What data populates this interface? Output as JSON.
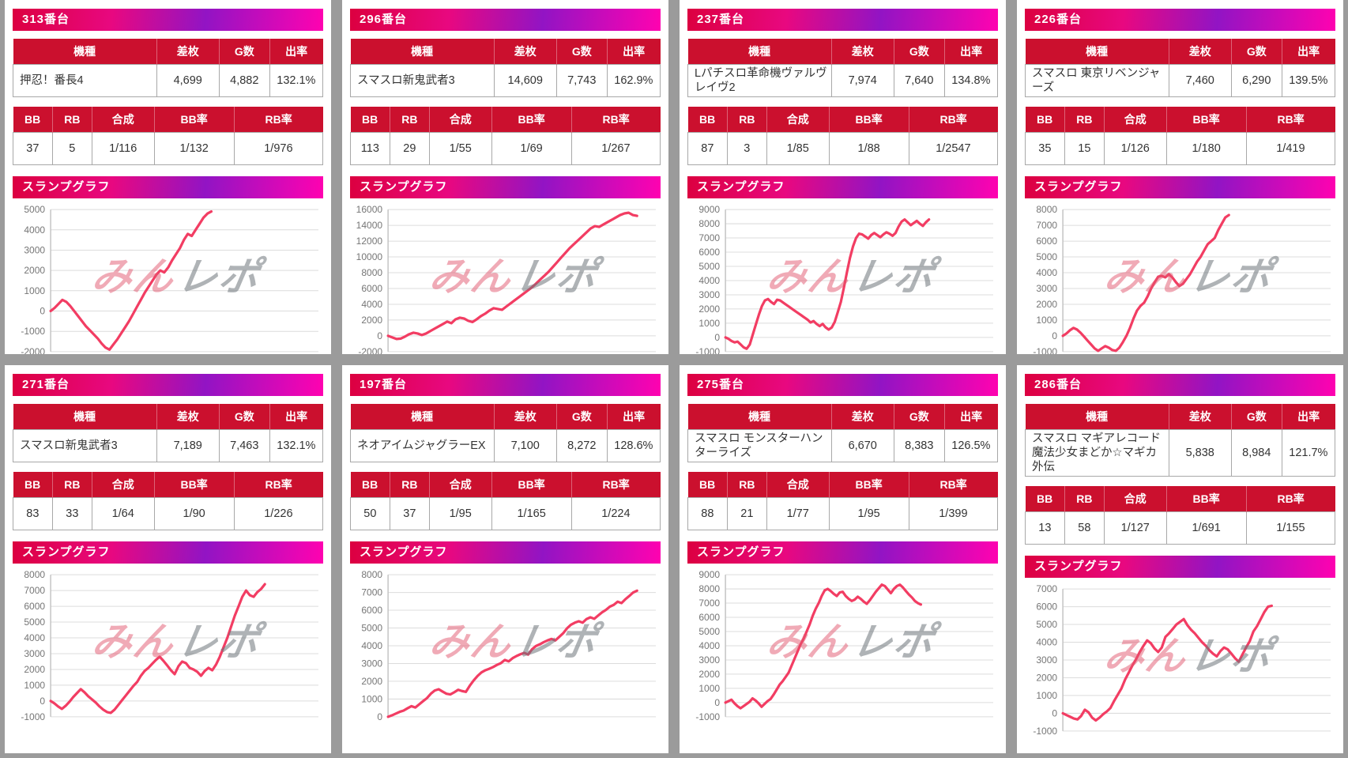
{
  "page": {
    "bg": "#9b9b9b"
  },
  "colors": {
    "header_gradient": [
      "#dc0040",
      "#e80880",
      "#9214c4",
      "#ff02b0"
    ],
    "table_header_red": "#cb102e",
    "line": "#f23d63",
    "watermark_pink": "#e1556e",
    "watermark_gray": "#6e747a",
    "grid_line": "#dcdcdc",
    "tick_text": "#757575"
  },
  "labels": {
    "t1": [
      "機種",
      "差枚",
      "G数",
      "出率"
    ],
    "t2": [
      "BB",
      "RB",
      "合成",
      "BB率",
      "RB率"
    ],
    "graph_title": "スランプグラフ",
    "watermark_pink": "みん",
    "watermark_gray": "レポ"
  },
  "panels": [
    {
      "unit": "313番台",
      "machine": "押忍！番長4",
      "diff": "4,699",
      "games": "4,882",
      "rate": "132.1%",
      "bb": "37",
      "rb": "5",
      "combined": "1/116",
      "bb_rate": "1/132",
      "rb_rate": "1/976"
    },
    {
      "unit": "296番台",
      "machine": "スマスロ新鬼武者3",
      "diff": "14,609",
      "games": "7,743",
      "rate": "162.9%",
      "bb": "113",
      "rb": "29",
      "combined": "1/55",
      "bb_rate": "1/69",
      "rb_rate": "1/267"
    },
    {
      "unit": "237番台",
      "machine": "Lパチスロ革命機ヴァルヴレイヴ2",
      "diff": "7,974",
      "games": "7,640",
      "rate": "134.8%",
      "bb": "87",
      "rb": "3",
      "combined": "1/85",
      "bb_rate": "1/88",
      "rb_rate": "1/2547"
    },
    {
      "unit": "226番台",
      "machine": "スマスロ 東京リベンジャーズ",
      "diff": "7,460",
      "games": "6,290",
      "rate": "139.5%",
      "bb": "35",
      "rb": "15",
      "combined": "1/126",
      "bb_rate": "1/180",
      "rb_rate": "1/419"
    },
    {
      "unit": "271番台",
      "machine": "スマスロ新鬼武者3",
      "diff": "7,189",
      "games": "7,463",
      "rate": "132.1%",
      "bb": "83",
      "rb": "33",
      "combined": "1/64",
      "bb_rate": "1/90",
      "rb_rate": "1/226"
    },
    {
      "unit": "197番台",
      "machine": "ネオアイムジャグラーEX",
      "diff": "7,100",
      "games": "8,272",
      "rate": "128.6%",
      "bb": "50",
      "rb": "37",
      "combined": "1/95",
      "bb_rate": "1/165",
      "rb_rate": "1/224"
    },
    {
      "unit": "275番台",
      "machine": "スマスロ モンスターハンターライズ",
      "diff": "6,670",
      "games": "8,383",
      "rate": "126.5%",
      "bb": "88",
      "rb": "21",
      "combined": "1/77",
      "bb_rate": "1/95",
      "rb_rate": "1/399"
    },
    {
      "unit": "286番台",
      "machine": "スマスロ マギアレコード 魔法少女まどか☆マギカ外伝",
      "diff": "5,838",
      "games": "8,984",
      "rate": "121.7%",
      "bb": "13",
      "rb": "58",
      "combined": "1/127",
      "bb_rate": "1/691",
      "rb_rate": "1/155"
    }
  ],
  "chart_data": [
    {
      "type": "line",
      "title": "313番台 スランプグラフ",
      "xlabel": "",
      "ylabel": "差枚",
      "ylim": [
        -2000,
        5000
      ],
      "ytick_step": 1000,
      "grid": true,
      "legend": "none",
      "x_end_frac": 0.6,
      "values": [
        0,
        150,
        350,
        550,
        450,
        250,
        0,
        -250,
        -500,
        -750,
        -950,
        -1150,
        -1350,
        -1600,
        -1800,
        -1900,
        -1650,
        -1400,
        -1100,
        -800,
        -500,
        -150,
        200,
        550,
        900,
        1200,
        1500,
        1800,
        2000,
        1900,
        2150,
        2500,
        2800,
        3100,
        3500,
        3800,
        3700,
        4000,
        4300,
        4600,
        4800,
        4900
      ]
    },
    {
      "type": "line",
      "title": "296番台 スランプグラフ",
      "xlabel": "",
      "ylabel": "差枚",
      "ylim": [
        -2000,
        16000
      ],
      "ytick_step": 2000,
      "grid": true,
      "legend": "none",
      "x_end_frac": 0.93,
      "values": [
        0,
        -200,
        -400,
        -350,
        -100,
        200,
        400,
        300,
        100,
        300,
        600,
        900,
        1200,
        1500,
        1800,
        1600,
        2100,
        2300,
        2200,
        1900,
        1750,
        2100,
        2500,
        2800,
        3200,
        3500,
        3400,
        3300,
        3700,
        4100,
        4500,
        4900,
        5300,
        5700,
        6100,
        6600,
        7100,
        7600,
        8100,
        8700,
        9300,
        9900,
        10500,
        11100,
        11600,
        12100,
        12600,
        13100,
        13600,
        13900,
        13800,
        14100,
        14400,
        14700,
        15000,
        15300,
        15500,
        15600,
        15300,
        15200
      ]
    },
    {
      "type": "line",
      "title": "237番台 スランプグラフ",
      "xlabel": "",
      "ylabel": "差枚",
      "ylim": [
        -1000,
        9000
      ],
      "ytick_step": 1000,
      "grid": true,
      "legend": "none",
      "x_end_frac": 0.76,
      "values": [
        0,
        -100,
        -250,
        -350,
        -300,
        -500,
        -700,
        -800,
        -500,
        200,
        900,
        1600,
        2200,
        2600,
        2700,
        2500,
        2350,
        2650,
        2600,
        2450,
        2300,
        2150,
        2000,
        1850,
        1700,
        1550,
        1400,
        1250,
        1050,
        1150,
        950,
        800,
        950,
        700,
        550,
        700,
        1100,
        1800,
        2500,
        3500,
        4600,
        5600,
        6400,
        7000,
        7300,
        7250,
        7100,
        6950,
        7200,
        7350,
        7200,
        7050,
        7250,
        7400,
        7300,
        7150,
        7350,
        7800,
        8150,
        8300,
        8100,
        7900,
        8050,
        8200,
        8000,
        7850,
        8100,
        8300
      ]
    },
    {
      "type": "line",
      "title": "226番台 スランプグラフ",
      "xlabel": "",
      "ylabel": "差枚",
      "ylim": [
        -1000,
        8000
      ],
      "ytick_step": 1000,
      "grid": true,
      "legend": "none",
      "x_end_frac": 0.62,
      "values": [
        0,
        150,
        350,
        500,
        400,
        200,
        -50,
        -300,
        -550,
        -800,
        -950,
        -800,
        -650,
        -750,
        -900,
        -950,
        -750,
        -400,
        0,
        500,
        1100,
        1600,
        1900,
        2100,
        2500,
        3000,
        3400,
        3750,
        3800,
        3700,
        3900,
        3700,
        3400,
        3150,
        3300,
        3600,
        3900,
        4300,
        4700,
        5000,
        5400,
        5800,
        6000,
        6200,
        6700,
        7100,
        7500,
        7650
      ]
    },
    {
      "type": "line",
      "title": "271番台 スランプグラフ",
      "xlabel": "",
      "ylabel": "差枚",
      "ylim": [
        -1000,
        8000
      ],
      "ytick_step": 1000,
      "grid": true,
      "legend": "none",
      "x_end_frac": 0.8,
      "values": [
        0,
        -150,
        -350,
        -500,
        -300,
        -50,
        250,
        500,
        750,
        550,
        300,
        100,
        -100,
        -350,
        -550,
        -700,
        -750,
        -550,
        -250,
        50,
        350,
        650,
        950,
        1200,
        1600,
        1900,
        2100,
        2350,
        2600,
        2800,
        2550,
        2250,
        1950,
        1700,
        2200,
        2500,
        2400,
        2100,
        2000,
        1850,
        1600,
        1900,
        2100,
        1950,
        2300,
        2800,
        3400,
        4000,
        4700,
        5400,
        6000,
        6600,
        7000,
        6700,
        6600,
        6900,
        7100,
        7400
      ]
    },
    {
      "type": "line",
      "title": "197番台 スランプグラフ",
      "xlabel": "",
      "ylabel": "差枚",
      "ylim": [
        0,
        8000
      ],
      "ytick_step": 1000,
      "grid": true,
      "legend": "none",
      "x_end_frac": 0.93,
      "values": [
        0,
        80,
        180,
        280,
        350,
        480,
        600,
        520,
        700,
        880,
        1050,
        1300,
        1480,
        1550,
        1420,
        1300,
        1260,
        1380,
        1520,
        1450,
        1400,
        1750,
        2050,
        2300,
        2500,
        2620,
        2700,
        2800,
        2920,
        3020,
        3200,
        3120,
        3300,
        3420,
        3520,
        3600,
        3500,
        3800,
        3980,
        4080,
        4200,
        4300,
        4380,
        4300,
        4500,
        4700,
        4980,
        5180,
        5300,
        5380,
        5300,
        5500,
        5600,
        5520,
        5700,
        5880,
        6020,
        6200,
        6300,
        6480,
        6400,
        6620,
        6800,
        7000,
        7100
      ]
    },
    {
      "type": "line",
      "title": "275番台 スランプグラフ",
      "xlabel": "",
      "ylabel": "差枚",
      "ylim": [
        -1000,
        9000
      ],
      "ytick_step": 1000,
      "grid": true,
      "legend": "none",
      "x_end_frac": 0.73,
      "values": [
        0,
        100,
        200,
        -50,
        -250,
        -400,
        -250,
        -100,
        50,
        300,
        150,
        -50,
        -300,
        -100,
        100,
        250,
        550,
        900,
        1250,
        1500,
        1800,
        2100,
        2600,
        3100,
        3600,
        4100,
        4500,
        5000,
        5500,
        6100,
        6600,
        7000,
        7500,
        7900,
        8000,
        7850,
        7650,
        7500,
        7750,
        7800,
        7500,
        7300,
        7150,
        7250,
        7450,
        7300,
        7100,
        6950,
        7200,
        7500,
        7800,
        8050,
        8300,
        8200,
        7950,
        7700,
        8000,
        8200,
        8300,
        8100,
        7850,
        7600,
        7400,
        7150,
        7000,
        6900
      ]
    },
    {
      "type": "line",
      "title": "286番台 スランプグラフ",
      "xlabel": "",
      "ylabel": "差枚",
      "ylim": [
        -1000,
        7000
      ],
      "ytick_step": 1000,
      "grid": true,
      "legend": "none",
      "x_end_frac": 0.78,
      "values": [
        0,
        -100,
        -200,
        -300,
        -350,
        -150,
        200,
        50,
        -250,
        -400,
        -250,
        -50,
        100,
        300,
        700,
        1050,
        1400,
        1900,
        2300,
        2700,
        3050,
        3450,
        3800,
        4100,
        3950,
        3650,
        3450,
        3700,
        4300,
        4500,
        4750,
        5000,
        5150,
        5300,
        4950,
        4700,
        4500,
        4250,
        4000,
        3800,
        3550,
        3350,
        3200,
        3500,
        3700,
        3600,
        3350,
        3100,
        2900,
        3300,
        3700,
        4050,
        4600,
        4900,
        5300,
        5700,
        6000,
        6050
      ]
    }
  ]
}
